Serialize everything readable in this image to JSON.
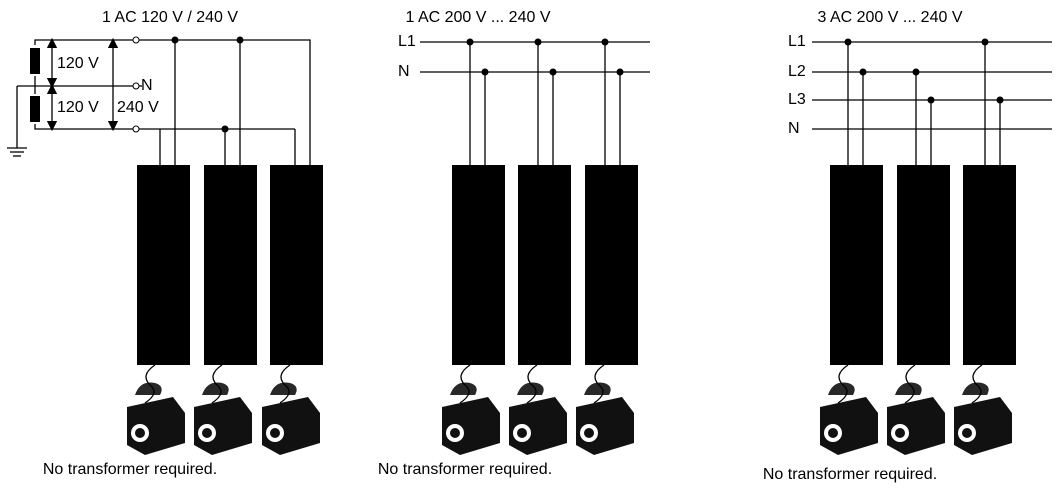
{
  "panels": [
    {
      "title": "1 AC 120 V / 240 V",
      "labels": [
        "120 V",
        "N",
        "120 V",
        "240 V"
      ],
      "caption": "No transformer required."
    },
    {
      "title": "1 AC 200 V ... 240 V",
      "lines": [
        "L1",
        "N"
      ],
      "caption": "No transformer required."
    },
    {
      "title": "3 AC 200 V ... 240 V",
      "lines": [
        "L1",
        "L2",
        "L3",
        "N"
      ],
      "caption": "No transformer required."
    }
  ]
}
